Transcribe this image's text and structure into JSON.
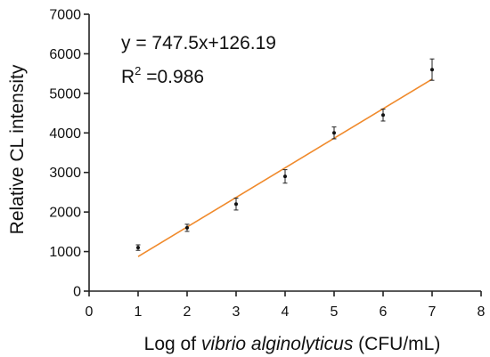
{
  "chart_data": {
    "type": "scatter",
    "xlabel": {
      "prefix": "Log of ",
      "italic": "vibrio alginolyticus",
      "suffix": " (CFU/mL)"
    },
    "ylabel": "Relative CL intensity",
    "xlim": [
      0,
      8
    ],
    "ylim": [
      0,
      7000
    ],
    "x_ticks": [
      "0",
      "1",
      "2",
      "3",
      "4",
      "5",
      "6",
      "7",
      "8"
    ],
    "y_ticks": [
      "0",
      "1000",
      "2000",
      "3000",
      "4000",
      "5000",
      "6000",
      "7000"
    ],
    "grid": false,
    "points": [
      {
        "x": 1,
        "y": 1100,
        "err": 70
      },
      {
        "x": 2,
        "y": 1600,
        "err": 90
      },
      {
        "x": 3,
        "y": 2200,
        "err": 150
      },
      {
        "x": 4,
        "y": 2900,
        "err": 170
      },
      {
        "x": 5,
        "y": 4000,
        "err": 150
      },
      {
        "x": 6,
        "y": 4450,
        "err": 150
      },
      {
        "x": 7,
        "y": 5600,
        "err": 270
      }
    ],
    "fit": {
      "slope": 747.5,
      "intercept": 126.19,
      "x_range": [
        1,
        7
      ],
      "color": "#f08a2c"
    },
    "annotations": {
      "equation": "y = 747.5x+126.19",
      "r2_prefix": "R",
      "r2_sup": "2",
      "r2_suffix": " =0.986"
    }
  }
}
